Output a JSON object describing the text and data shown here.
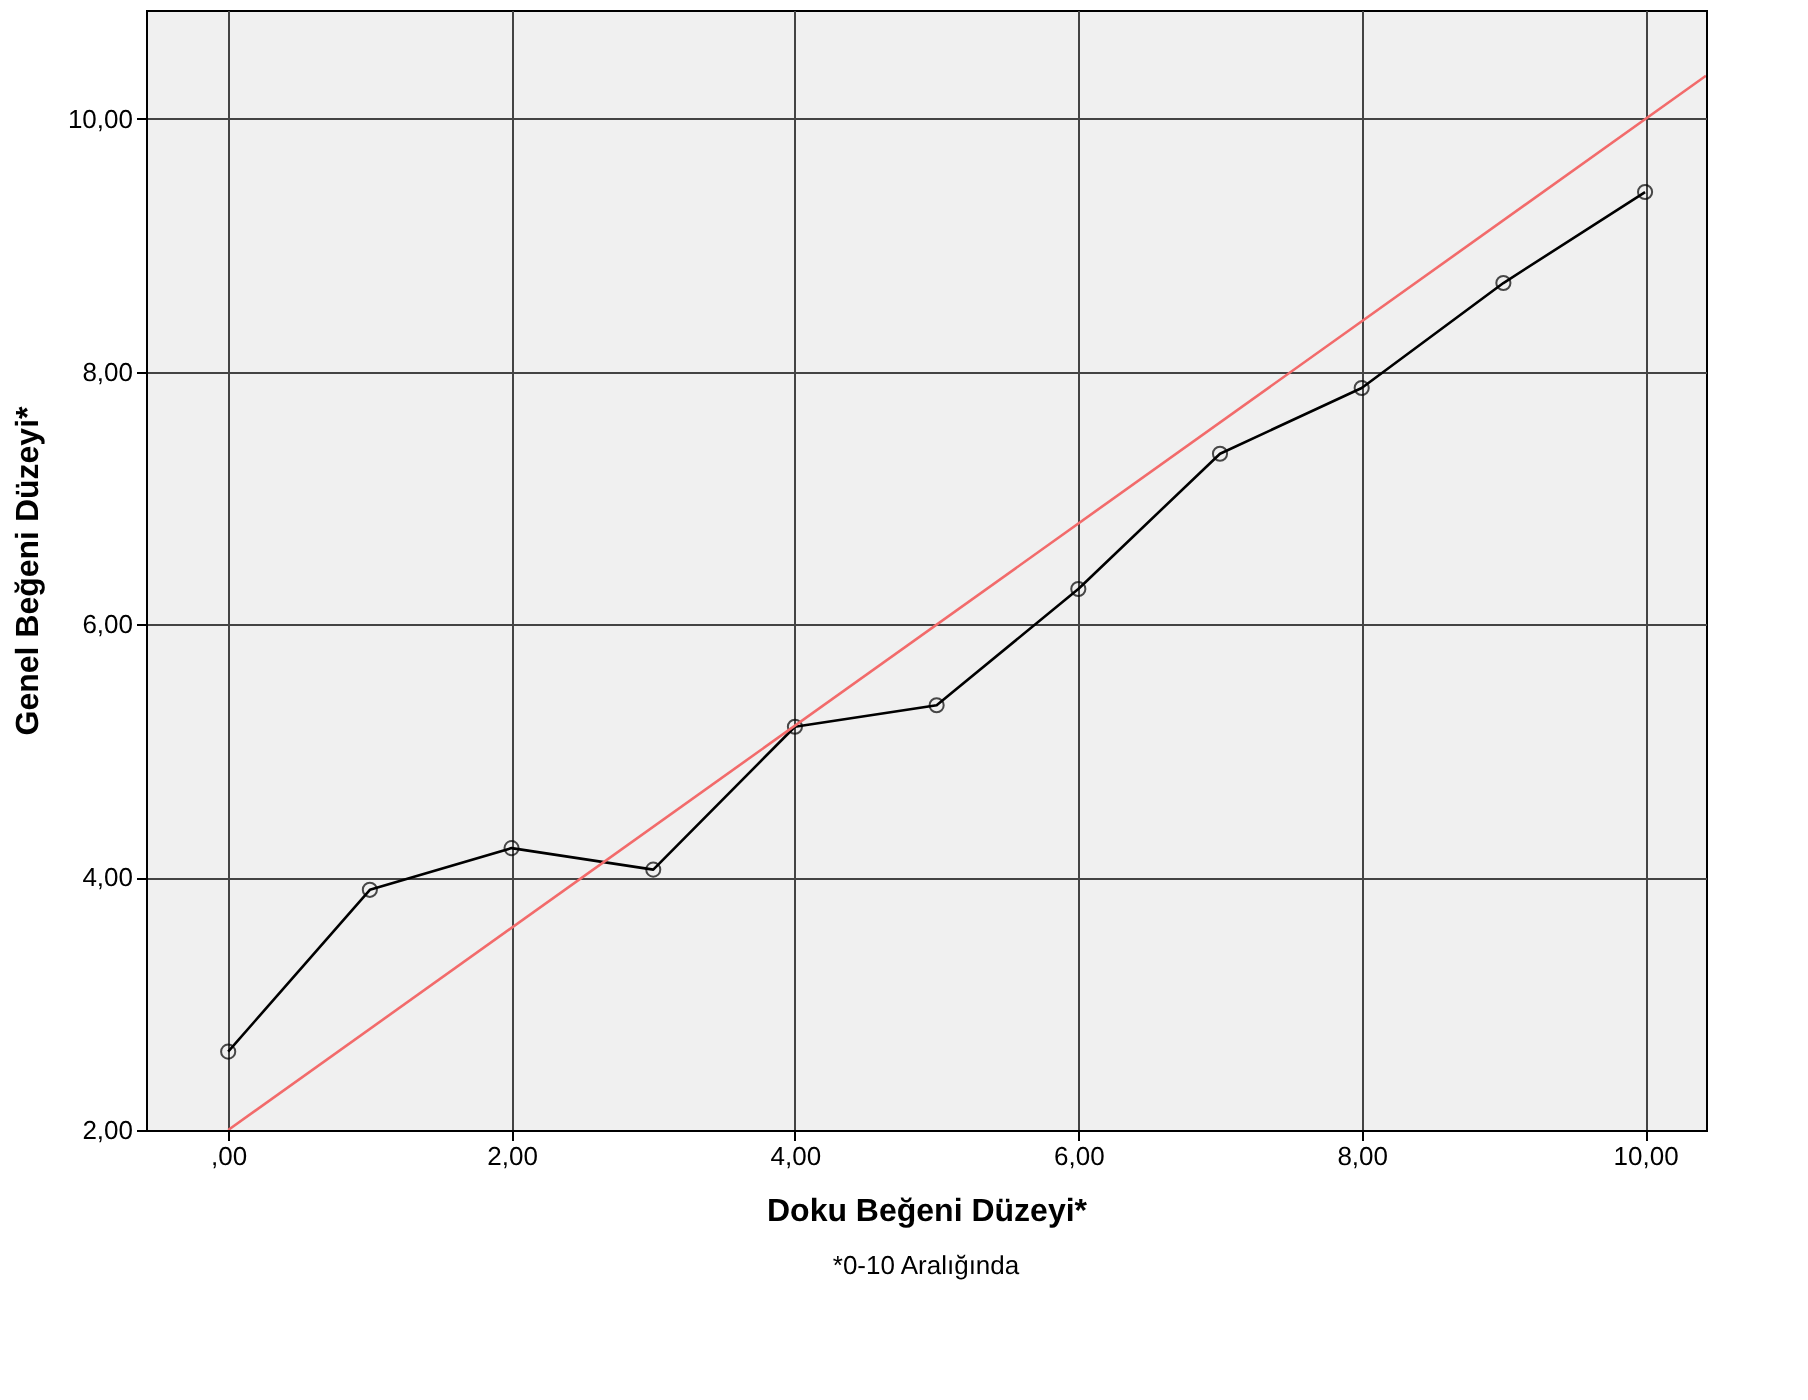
{
  "chart_data": {
    "type": "line",
    "xlabel": "Doku Beğeni Düzeyi*",
    "ylabel": "Genel Beğeni Düzeyi*",
    "annotations": [
      "*0-10 Aralığında"
    ],
    "x": [
      0,
      1,
      2,
      3,
      4,
      5,
      6,
      7,
      8,
      9,
      10
    ],
    "series": [
      {
        "color": "#000000",
        "values": [
          2.62,
          3.9,
          4.23,
          4.06,
          5.19,
          5.36,
          6.28,
          7.35,
          7.87,
          8.7,
          9.42
        ],
        "marker": "circle"
      },
      {
        "color": "#f26b6b",
        "x": [
          0,
          10.43
        ],
        "values": [
          2,
          10.34
        ],
        "marker": "none"
      }
    ],
    "xlim": [
      -0.58,
      10.43
    ],
    "ylim": [
      2,
      10.86
    ],
    "xticks": [
      {
        "value": 0,
        "label": ",00"
      },
      {
        "value": 2,
        "label": "2,00"
      },
      {
        "value": 4,
        "label": "4,00"
      },
      {
        "value": 6,
        "label": "6,00"
      },
      {
        "value": 8,
        "label": "8,00"
      },
      {
        "value": 10,
        "label": "10,00"
      }
    ],
    "yticks": [
      {
        "value": 2,
        "label": "2,00"
      },
      {
        "value": 4,
        "label": "4,00"
      },
      {
        "value": 6,
        "label": "6,00"
      },
      {
        "value": 8,
        "label": "8,00"
      },
      {
        "value": 10,
        "label": "10,00"
      }
    ],
    "grid": true
  }
}
